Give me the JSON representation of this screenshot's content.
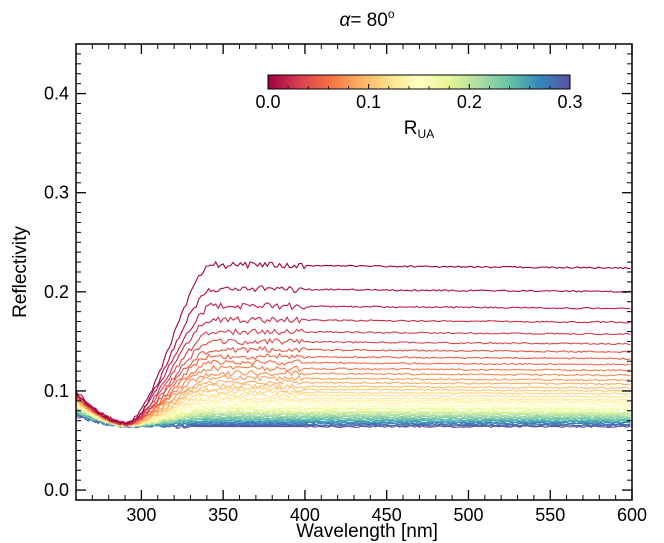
{
  "chart_data": {
    "type": "line",
    "title": "α= 80°",
    "title_parts": {
      "symbol": "α",
      "text": "= 80",
      "superscript": "o"
    },
    "xlabel": "Wavelength [nm]",
    "ylabel": "Reflectivity",
    "xlim": [
      260,
      600
    ],
    "ylim": [
      -0.01,
      0.45
    ],
    "x_ticks": [
      300,
      350,
      400,
      450,
      500,
      550,
      600
    ],
    "x_tick_labels": [
      "300",
      "350",
      "400",
      "450",
      "500",
      "550",
      "600"
    ],
    "y_ticks": [
      0.0,
      0.1,
      0.2,
      0.3,
      0.4
    ],
    "y_tick_labels": [
      "0.0",
      "0.1",
      "0.2",
      "0.3",
      "0.4"
    ],
    "grid": false,
    "colorbar": {
      "label": "R",
      "label_subscript": "UA",
      "range": [
        0.0,
        0.3
      ],
      "ticks": [
        0.0,
        0.1,
        0.2,
        0.3
      ],
      "tick_labels": [
        "0.0",
        "0.1",
        "0.2",
        "0.3"
      ],
      "colormap": "Spectral",
      "colors": [
        "#9e0142",
        "#d53e4f",
        "#f46d43",
        "#fdae61",
        "#fee08b",
        "#ffffbf",
        "#e6f598",
        "#abdda4",
        "#66c2a5",
        "#3288bd",
        "#5e4fa2"
      ],
      "placement": "top-inside"
    },
    "series_params": {
      "r_ua": [
        0.0,
        0.0075,
        0.015,
        0.0225,
        0.03,
        0.0375,
        0.045,
        0.0525,
        0.06,
        0.0675,
        0.075,
        0.0825,
        0.09,
        0.0975,
        0.105,
        0.1125,
        0.12,
        0.1275,
        0.135,
        0.1425,
        0.15,
        0.1575,
        0.165,
        0.1725,
        0.18,
        0.1875,
        0.195,
        0.2025,
        0.21,
        0.2175,
        0.225,
        0.2325,
        0.24,
        0.2475,
        0.255,
        0.2625,
        0.27,
        0.2775,
        0.285,
        0.2925,
        0.3
      ],
      "plateau_reflectivity": [
        0.227,
        0.203,
        0.186,
        0.172,
        0.16,
        0.15,
        0.142,
        0.135,
        0.129,
        0.123,
        0.118,
        0.113,
        0.109,
        0.105,
        0.102,
        0.099,
        0.096,
        0.093,
        0.091,
        0.089,
        0.087,
        0.085,
        0.083,
        0.082,
        0.08,
        0.079,
        0.078,
        0.077,
        0.076,
        0.075,
        0.074,
        0.073,
        0.072,
        0.071,
        0.07,
        0.069,
        0.068,
        0.067,
        0.066,
        0.065,
        0.064
      ]
    },
    "reference_points": {
      "wavelength_nm": [
        260,
        290,
        320,
        345,
        400,
        600
      ],
      "note_lowest_reflectivity_at_290nm": 0.063
    }
  }
}
